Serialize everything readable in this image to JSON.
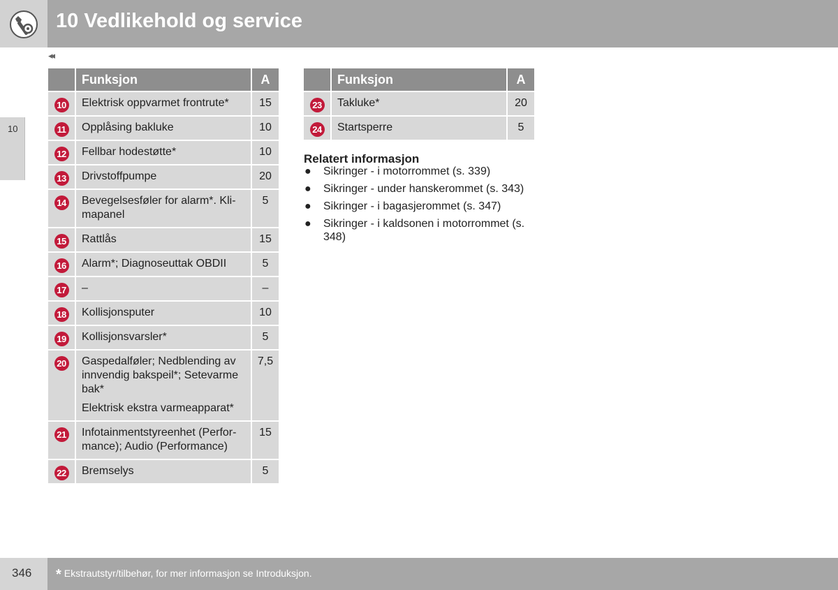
{
  "header": {
    "title": "10 Vedlikehold og service",
    "icon": "wrench-gear-icon"
  },
  "nav": {
    "back_arrows": "◂◂"
  },
  "side_tab": {
    "label": "10"
  },
  "table_headers": {
    "func": "Funksjon",
    "amp": "A"
  },
  "fuse_table_left": [
    {
      "num": "10",
      "func": "Elektrisk oppvarmet frontrute*",
      "amp": "15"
    },
    {
      "num": "11",
      "func": "Opplåsing bakluke",
      "amp": "10"
    },
    {
      "num": "12",
      "func": "Fellbar hodestøtte*",
      "amp": "10"
    },
    {
      "num": "13",
      "func": "Drivstoffpumpe",
      "amp": "20"
    },
    {
      "num": "14",
      "func": "Bevegelsesføler for alarm*. Kli-\nmapanel",
      "amp": "5"
    },
    {
      "num": "15",
      "func": "Rattlås",
      "amp": "15"
    },
    {
      "num": "16",
      "func": "Alarm*; Diagnoseuttak OBDII",
      "amp": "5"
    },
    {
      "num": "17",
      "func": "–",
      "amp": "–"
    },
    {
      "num": "18",
      "func": "Kollisjonsputer",
      "amp": "10"
    },
    {
      "num": "19",
      "func": "Kollisjonsvarsler*",
      "amp": "5"
    },
    {
      "num": "20",
      "func": "Gaspedalføler; Nedblending av\ninnvendig bakspeil*; Setevarme\nbak*",
      "extra": "Elektrisk ekstra varmeapparat*",
      "amp": "7,5"
    },
    {
      "num": "21",
      "func": "Infotainmentstyreenhet (Perfor-\nmance); Audio (Performance)",
      "amp": "15"
    },
    {
      "num": "22",
      "func": "Bremselys",
      "amp": "5"
    }
  ],
  "fuse_table_right": [
    {
      "num": "23",
      "func": "Takluke*",
      "amp": "20"
    },
    {
      "num": "24",
      "func": "Startsperre",
      "amp": "5"
    }
  ],
  "related": {
    "title": "Relatert informasjon",
    "items": [
      "Sikringer - i motorrommet (s. 339)",
      "Sikringer - under hanskerommet (s. 343)",
      "Sikringer - i bagasjerommet (s. 347)",
      "Sikringer - i kaldsonen i motorrommet (s.\n348)"
    ]
  },
  "footer": {
    "page_number": "346",
    "star": "*",
    "note": "Ekstrautstyr/tilbehør, for mer informasjon se Introduksjon."
  },
  "colors": {
    "badge": "#c21a3a",
    "header_bg": "#a7a7a7",
    "table_header": "#8e8e8e",
    "cell": "#d8d8d8"
  }
}
